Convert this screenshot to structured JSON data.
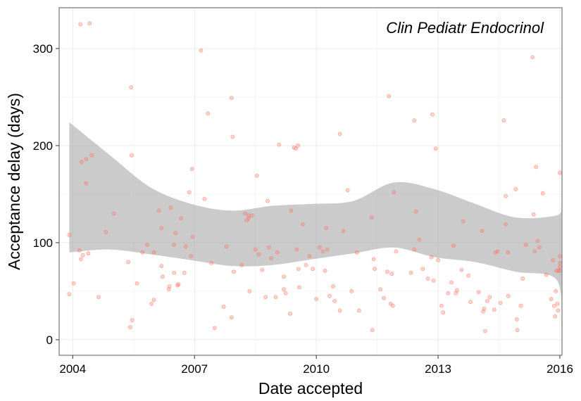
{
  "chart_data": {
    "type": "scatter",
    "annotation": "Clin Pediatr Endocrinol",
    "xlabel": "Date accepted",
    "ylabel": "Acceptance delay (days)",
    "x_ticks": [
      "2004",
      "2007",
      "2010",
      "2013",
      "2016"
    ],
    "y_ticks": [
      "0",
      "100",
      "200",
      "300"
    ],
    "xlim": [
      "2003-09-01",
      "2016-01-20"
    ],
    "ylim": [
      -16,
      342
    ],
    "grid": true,
    "colors": {
      "point": "#ff6f61",
      "band": "#a9a9a9",
      "panel_border": "#7f7f7f",
      "grid": "#ebebeb"
    },
    "points": [
      [
        "2003-12-01",
        108
      ],
      [
        "2003-12-01",
        47
      ],
      [
        "2004-01-10",
        58
      ],
      [
        "2004-03-01",
        92
      ],
      [
        "2004-03-15",
        83
      ],
      [
        "2004-03-20",
        183
      ],
      [
        "2004-04-01",
        87
      ],
      [
        "2004-05-01",
        161
      ],
      [
        "2004-05-01",
        186
      ],
      [
        "2004-05-20",
        89
      ],
      [
        "2004-06-20",
        190
      ],
      [
        "2004-08-20",
        44
      ],
      [
        "2004-03-10",
        325
      ],
      [
        "2004-06-01",
        326
      ],
      [
        "2004-10-25",
        111
      ],
      [
        "2005-01-05",
        130
      ],
      [
        "2005-05-15",
        80
      ],
      [
        "2005-06-01",
        13
      ],
      [
        "2005-06-10",
        260
      ],
      [
        "2005-06-15",
        190
      ],
      [
        "2005-06-20",
        20
      ],
      [
        "2005-08-01",
        58
      ],
      [
        "2005-09-20",
        90
      ],
      [
        "2005-11-01",
        98
      ],
      [
        "2005-12-10",
        37
      ],
      [
        "2006-01-01",
        41
      ],
      [
        "2006-01-01",
        90
      ],
      [
        "2006-02-15",
        133
      ],
      [
        "2006-03-10",
        115
      ],
      [
        "2006-03-10",
        76
      ],
      [
        "2006-03-20",
        65
      ],
      [
        "2006-05-15",
        52
      ],
      [
        "2006-05-20",
        55
      ],
      [
        "2006-06-01",
        136
      ],
      [
        "2006-07-01",
        98
      ],
      [
        "2006-07-01",
        69
      ],
      [
        "2006-07-15",
        110
      ],
      [
        "2006-08-01",
        56
      ],
      [
        "2006-08-10",
        57
      ],
      [
        "2006-09-01",
        125
      ],
      [
        "2006-10-01",
        69
      ],
      [
        "2006-10-15",
        96
      ],
      [
        "2006-11-15",
        152
      ],
      [
        "2006-12-01",
        86
      ],
      [
        "2006-12-10",
        176
      ],
      [
        "2006-12-15",
        106
      ],
      [
        "2007-03-01",
        298
      ],
      [
        "2007-04-01",
        145
      ],
      [
        "2007-05-01",
        233
      ],
      [
        "2007-06-01",
        79
      ],
      [
        "2007-07-01",
        12
      ],
      [
        "2007-09-20",
        34
      ],
      [
        "2007-10-15",
        96
      ],
      [
        "2007-12-01",
        23
      ],
      [
        "2007-12-01",
        249
      ],
      [
        "2007-12-10",
        209
      ],
      [
        "2007-12-20",
        70
      ],
      [
        "2008-03-01",
        77
      ],
      [
        "2008-04-01",
        130
      ],
      [
        "2008-04-15",
        123
      ],
      [
        "2008-05-01",
        128
      ],
      [
        "2008-05-01",
        125
      ],
      [
        "2008-05-10",
        50
      ],
      [
        "2008-06-01",
        128
      ],
      [
        "2008-07-01",
        93
      ],
      [
        "2008-07-15",
        169
      ],
      [
        "2008-08-01",
        88
      ],
      [
        "2008-09-01",
        72
      ],
      [
        "2008-10-01",
        44
      ],
      [
        "2008-10-20",
        143
      ],
      [
        "2008-11-01",
        95
      ],
      [
        "2008-11-20",
        84
      ],
      [
        "2009-01-01",
        44
      ],
      [
        "2009-01-15",
        90
      ],
      [
        "2009-02-01",
        201
      ],
      [
        "2009-03-15",
        65
      ],
      [
        "2009-03-15",
        52
      ],
      [
        "2009-04-01",
        48
      ],
      [
        "2009-05-10",
        27
      ],
      [
        "2009-05-20",
        133
      ],
      [
        "2009-06-15",
        198
      ],
      [
        "2009-07-01",
        197
      ],
      [
        "2009-07-10",
        93
      ],
      [
        "2009-07-20",
        200
      ],
      [
        "2009-07-25",
        73
      ],
      [
        "2009-08-01",
        54
      ],
      [
        "2009-09-01",
        119
      ],
      [
        "2009-10-01",
        77
      ],
      [
        "2009-11-01",
        86
      ],
      [
        "2009-12-01",
        73
      ],
      [
        "2010-01-01",
        42
      ],
      [
        "2010-02-01",
        95
      ],
      [
        "2010-03-01",
        91
      ],
      [
        "2010-03-20",
        71
      ],
      [
        "2010-04-01",
        115
      ],
      [
        "2010-04-10",
        93
      ],
      [
        "2010-05-01",
        45
      ],
      [
        "2010-06-01",
        55
      ],
      [
        "2010-06-15",
        40
      ],
      [
        "2010-08-01",
        30
      ],
      [
        "2010-08-01",
        212
      ],
      [
        "2010-09-01",
        112
      ],
      [
        "2010-10-10",
        154
      ],
      [
        "2010-11-15",
        50
      ],
      [
        "2011-01-01",
        90
      ],
      [
        "2011-01-20",
        30
      ],
      [
        "2011-05-15",
        126
      ],
      [
        "2011-05-20",
        10
      ],
      [
        "2011-06-01",
        83
      ],
      [
        "2011-06-10",
        73
      ],
      [
        "2011-08-01",
        52
      ],
      [
        "2011-09-01",
        43
      ],
      [
        "2011-10-01",
        70
      ],
      [
        "2011-10-15",
        251
      ],
      [
        "2011-11-01",
        37
      ],
      [
        "2011-11-10",
        68
      ],
      [
        "2011-11-20",
        35
      ],
      [
        "2011-12-01",
        152
      ],
      [
        "2011-12-20",
        91
      ],
      [
        "2012-05-01",
        69
      ],
      [
        "2012-06-01",
        93
      ],
      [
        "2012-06-01",
        226
      ],
      [
        "2012-06-15",
        132
      ],
      [
        "2012-07-15",
        103
      ],
      [
        "2012-08-15",
        73
      ],
      [
        "2012-10-01",
        63
      ],
      [
        "2012-11-01",
        85
      ],
      [
        "2012-11-10",
        232
      ],
      [
        "2012-11-20",
        61
      ],
      [
        "2012-12-10",
        197
      ],
      [
        "2013-01-01",
        82
      ],
      [
        "2013-02-01",
        35
      ],
      [
        "2013-02-15",
        28
      ],
      [
        "2013-04-01",
        48
      ],
      [
        "2013-05-01",
        59
      ],
      [
        "2013-05-20",
        97
      ],
      [
        "2013-06-10",
        48
      ],
      [
        "2013-06-20",
        51
      ],
      [
        "2013-08-01",
        72
      ],
      [
        "2013-08-15",
        122
      ],
      [
        "2013-10-01",
        66
      ],
      [
        "2013-10-20",
        39
      ],
      [
        "2014-01-01",
        49
      ],
      [
        "2014-02-01",
        112
      ],
      [
        "2014-02-10",
        29
      ],
      [
        "2014-02-20",
        32
      ],
      [
        "2014-03-01",
        9
      ],
      [
        "2014-03-20",
        40
      ],
      [
        "2014-04-10",
        44
      ],
      [
        "2014-05-20",
        31
      ],
      [
        "2014-06-01",
        90
      ],
      [
        "2014-06-20",
        91
      ],
      [
        "2014-07-15",
        38
      ],
      [
        "2014-08-15",
        226
      ],
      [
        "2014-09-01",
        148
      ],
      [
        "2014-09-01",
        119
      ],
      [
        "2014-09-20",
        90
      ],
      [
        "2014-09-25",
        45
      ],
      [
        "2014-12-01",
        155
      ],
      [
        "2014-12-10",
        21
      ],
      [
        "2014-12-15",
        10
      ],
      [
        "2015-01-15",
        35
      ],
      [
        "2015-02-01",
        63
      ],
      [
        "2015-03-01",
        98
      ],
      [
        "2015-05-01",
        291
      ],
      [
        "2015-05-10",
        129
      ],
      [
        "2015-05-20",
        91
      ],
      [
        "2015-06-01",
        178
      ],
      [
        "2015-06-15",
        102
      ],
      [
        "2015-07-01",
        95
      ],
      [
        "2015-08-01",
        151
      ],
      [
        "2015-09-01",
        67
      ],
      [
        "2015-10-15",
        42
      ],
      [
        "2015-11-01",
        82
      ],
      [
        "2015-11-10",
        35
      ],
      [
        "2015-11-20",
        24
      ],
      [
        "2015-12-01",
        71
      ],
      [
        "2015-12-10",
        37
      ],
      [
        "2015-12-15",
        30
      ],
      [
        "2015-12-20",
        71
      ],
      [
        "2016-01-01",
        71
      ],
      [
        "2016-01-05",
        79
      ],
      [
        "2016-01-10",
        75
      ],
      [
        "2016-01-15",
        172
      ],
      [
        "2016-01-20",
        86
      ],
      [
        "2015-11-25",
        50
      ]
    ],
    "smooth_band": {
      "x": [
        "2003-12-01",
        "2004-12-01",
        "2005-12-01",
        "2006-12-01",
        "2007-12-01",
        "2008-12-01",
        "2009-12-01",
        "2010-12-01",
        "2011-12-01",
        "2012-12-01",
        "2013-12-01",
        "2014-12-01",
        "2015-12-01",
        "2016-01-15"
      ],
      "upper": [
        224,
        190,
        157,
        140,
        133,
        138,
        140,
        143,
        162,
        155,
        140,
        126,
        128,
        138
      ],
      "lower": [
        90,
        93,
        88,
        82,
        76,
        77,
        83,
        89,
        95,
        85,
        80,
        70,
        62,
        15
      ]
    }
  }
}
